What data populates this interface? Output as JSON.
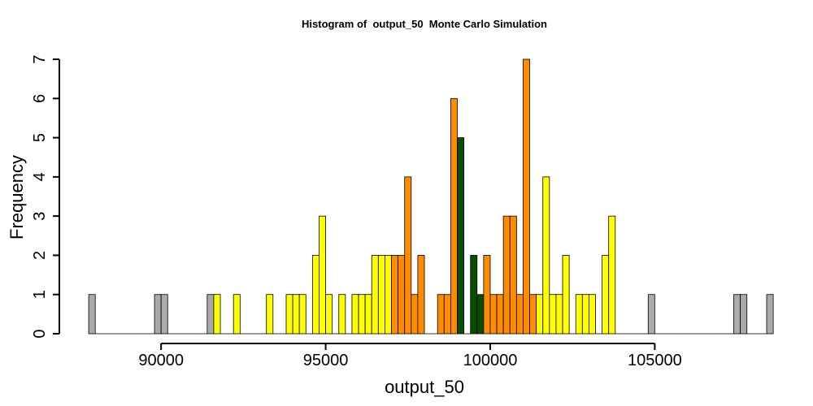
{
  "chart_data": {
    "type": "bar",
    "title": "Histogram of  output_50  Monte Carlo Simulation",
    "xlabel": "output_50",
    "ylabel": "Frequency",
    "xlim": [
      87600,
      108400
    ],
    "ylim": [
      0,
      7
    ],
    "x_ticks": [
      90000,
      95000,
      100000,
      105000
    ],
    "x_tick_labels": [
      "90000",
      "95000",
      "100000",
      "105000"
    ],
    "y_ticks": [
      0,
      1,
      2,
      3,
      4,
      5,
      6,
      7
    ],
    "y_tick_labels": [
      "0",
      "1",
      "2",
      "3",
      "4",
      "5",
      "6",
      "7"
    ],
    "bin_start": 87800,
    "bin_width": 200,
    "values": [
      1,
      0,
      0,
      0,
      0,
      0,
      0,
      0,
      0,
      0,
      1,
      1,
      0,
      0,
      0,
      0,
      0,
      0,
      1,
      1,
      0,
      0,
      1,
      0,
      0,
      0,
      0,
      1,
      0,
      0,
      1,
      1,
      1,
      0,
      2,
      3,
      1,
      0,
      1,
      0,
      1,
      1,
      1,
      2,
      2,
      2,
      2,
      2,
      4,
      1,
      2,
      0,
      0,
      1,
      1,
      6,
      5,
      0,
      2,
      1,
      2,
      1,
      1,
      3,
      3,
      1,
      7,
      1,
      1,
      4,
      1,
      1,
      2,
      0,
      1,
      1,
      1,
      0,
      2,
      3,
      0,
      0,
      0,
      0,
      0,
      1,
      0,
      0,
      0,
      0,
      0,
      0,
      0,
      0,
      0,
      0,
      0,
      0,
      1,
      1,
      0,
      0,
      0,
      1
    ],
    "colors": {
      "grey": "#aaaaaa",
      "yellow": "#ffff00",
      "orange": "#ff8c00",
      "green": "#0a4d00",
      "outline": "#000000"
    },
    "color_bands": [
      {
        "from": 87600,
        "to": 91600,
        "color": "grey"
      },
      {
        "from": 91600,
        "to": 97000,
        "color": "yellow"
      },
      {
        "from": 97000,
        "to": 99000,
        "color": "orange"
      },
      {
        "from": 99000,
        "to": 99800,
        "color": "green"
      },
      {
        "from": 99800,
        "to": 101400,
        "color": "orange"
      },
      {
        "from": 101400,
        "to": 104000,
        "color": "yellow"
      },
      {
        "from": 104000,
        "to": 108400,
        "color": "grey"
      }
    ],
    "grid": false,
    "legend": "none"
  }
}
